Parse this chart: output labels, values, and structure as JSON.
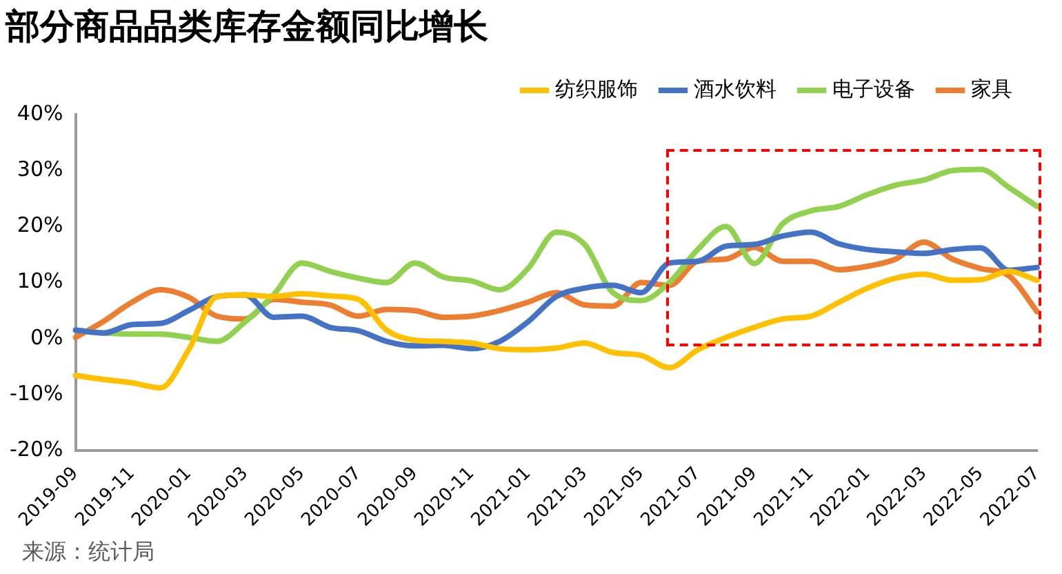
{
  "chart_data": {
    "type": "line",
    "title": "部分商品品类库存金额同比增长",
    "categories": [
      "2019-09",
      null,
      "2019-11",
      null,
      "2020-01",
      null,
      "2020-03",
      null,
      "2020-05",
      null,
      "2020-07",
      null,
      "2020-09",
      null,
      "2020-11",
      null,
      "2021-01",
      null,
      "2021-03",
      null,
      "2021-05",
      null,
      "2021-07",
      null,
      "2021-09",
      null,
      "2021-11",
      null,
      "2022-01",
      null,
      "2022-03",
      null,
      "2022-05",
      null,
      "2022-07"
    ],
    "series": [
      {
        "name": "纺织服饰",
        "color": "#ffc000",
        "values": [
          -6.6,
          -7.3,
          -7.9,
          -8.8,
          -2,
          7.5,
          7.8,
          7.5,
          8,
          7.6,
          7,
          1.5,
          -0.3,
          -0.5,
          -0.8,
          -1.8,
          -2,
          -1.7,
          -0.8,
          -2.5,
          -3,
          -5.2,
          -2,
          0.2,
          2,
          3.5,
          4,
          6.5,
          9,
          10.8,
          11.5,
          10.4,
          10.5,
          12,
          10.4
        ]
      },
      {
        "name": "酒水饮料",
        "color": "#4472c4",
        "values": [
          1.5,
          1,
          2.5,
          2.7,
          5,
          7.5,
          7.8,
          3.8,
          4,
          2,
          1.4,
          -0.5,
          -1.3,
          -1.2,
          -1.8,
          -0.5,
          3,
          7.5,
          9,
          9.5,
          8.2,
          13.5,
          13.8,
          16.5,
          16.8,
          18.3,
          19,
          16.9,
          15.9,
          15.5,
          15.2,
          15.9,
          16.2,
          12.2,
          12.7
        ]
      },
      {
        "name": "电子设备",
        "color": "#92d050",
        "values": [
          1.5,
          1,
          0.8,
          0.8,
          0.2,
          -0.5,
          3,
          7.8,
          13.5,
          12,
          10.8,
          10,
          13.5,
          11,
          10.3,
          8.7,
          12.5,
          19,
          16.8,
          8.2,
          6.8,
          10,
          15.9,
          20,
          13.4,
          20.5,
          22.8,
          23.6,
          25.7,
          27.4,
          28.3,
          30,
          30.2,
          27,
          23.6
        ]
      },
      {
        "name": "家具",
        "color": "#ed7d31",
        "values": [
          0.2,
          3.1,
          6.5,
          8.7,
          7.4,
          4,
          3.5,
          7,
          6.5,
          6,
          4,
          5.2,
          5,
          3.8,
          4,
          5,
          6.5,
          8.2,
          6,
          5.8,
          10,
          9.5,
          13.8,
          14.2,
          16.3,
          13.8,
          13.8,
          12.3,
          12.9,
          14.2,
          17.2,
          14.2,
          12.5,
          11.2,
          4.8
        ]
      }
    ],
    "ylim": [
      -20,
      40
    ],
    "yticks": [
      {
        "value": -20,
        "label": "-20%"
      },
      {
        "value": -10,
        "label": "-10%"
      },
      {
        "value": 0,
        "label": "0%"
      },
      {
        "value": 10,
        "label": "10%"
      },
      {
        "value": 20,
        "label": "20%"
      },
      {
        "value": 30,
        "label": "30%"
      },
      {
        "value": 40,
        "label": "40%"
      }
    ],
    "grid": false,
    "legend": "top right",
    "marker": "none",
    "line_style": "solid",
    "annotations": [
      "来源：统计局"
    ]
  }
}
